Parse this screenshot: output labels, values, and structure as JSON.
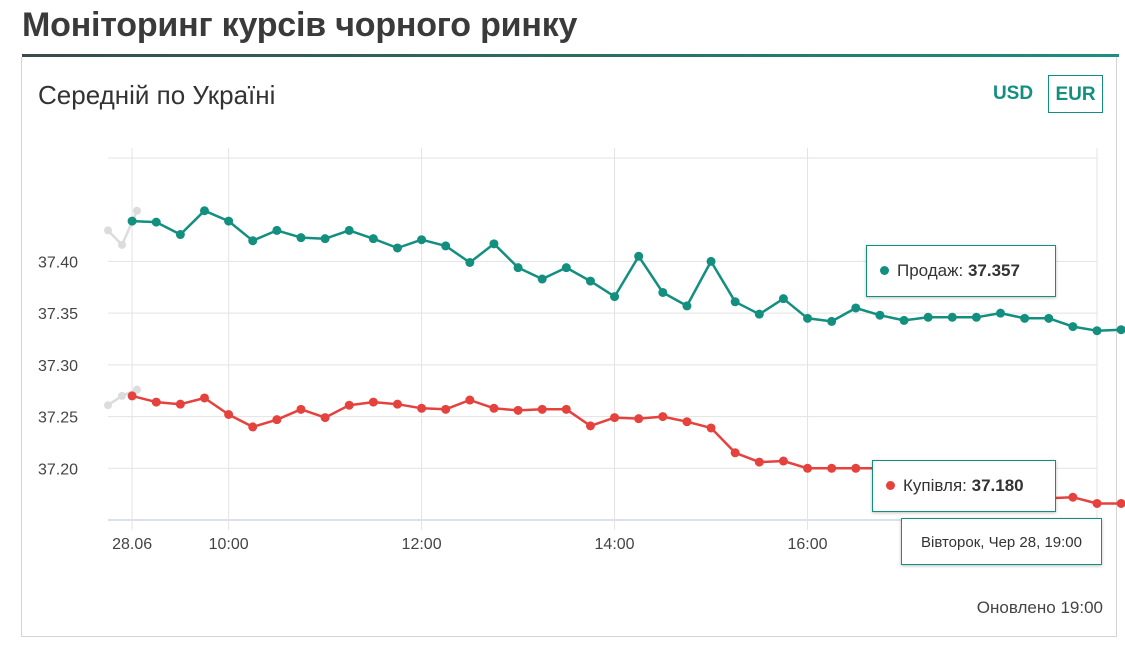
{
  "header": {
    "title": "Моніторинг курсів чорного ринку"
  },
  "card": {
    "title": "Середній по Україні",
    "updated": "Оновлено 19:00"
  },
  "currency": {
    "usd_label": "USD",
    "eur_label": "EUR",
    "active": "EUR"
  },
  "colors": {
    "sell": "#138f7f",
    "buy": "#e5423d",
    "grid": "#e3e3e3",
    "prev": "#dcdcdc"
  },
  "chart_data": {
    "type": "line",
    "title": "",
    "xlabel": "",
    "ylabel": "",
    "x_start": "09:00",
    "x_step_minutes": 15,
    "xlim": [
      "08:45",
      "19:00"
    ],
    "ylim": [
      37.15,
      37.5
    ],
    "y_ticks": [
      "37.40",
      "37.35",
      "37.30",
      "37.25",
      "37.20"
    ],
    "x_ticks": [
      {
        "time": "09:00",
        "label": "28.06"
      },
      {
        "time": "10:00",
        "label": "10:00"
      },
      {
        "time": "12:00",
        "label": "12:00"
      },
      {
        "time": "14:00",
        "label": "14:00"
      },
      {
        "time": "16:00",
        "label": "16:00"
      }
    ],
    "grid": true,
    "series": [
      {
        "name": "Продаж",
        "values": [
          37.439,
          37.438,
          37.426,
          37.449,
          37.439,
          37.42,
          37.43,
          37.423,
          37.422,
          37.43,
          37.422,
          37.413,
          37.421,
          37.415,
          37.399,
          37.417,
          37.394,
          37.383,
          37.394,
          37.381,
          37.366,
          37.405,
          37.37,
          37.357,
          37.4,
          37.361,
          37.349,
          37.364,
          37.345,
          37.342,
          37.355,
          37.348,
          37.343,
          37.346,
          37.346,
          37.346,
          37.35,
          37.345,
          37.345,
          37.337,
          37.333,
          37.334,
          37.342,
          37.334,
          37.335,
          37.345,
          37.347,
          37.345,
          37.35,
          37.347,
          37.345,
          37.343,
          37.34,
          37.338,
          37.338,
          37.339,
          37.34,
          37.344,
          37.35,
          37.357
        ]
      },
      {
        "name": "Купівля",
        "values": [
          37.27,
          37.264,
          37.262,
          37.268,
          37.252,
          37.24,
          37.247,
          37.257,
          37.249,
          37.261,
          37.264,
          37.262,
          37.258,
          37.257,
          37.266,
          37.258,
          37.256,
          37.257,
          37.257,
          37.241,
          37.249,
          37.248,
          37.25,
          37.245,
          37.239,
          37.215,
          37.206,
          37.207,
          37.2,
          37.2,
          37.2,
          37.2,
          37.2,
          37.2,
          37.189,
          37.176,
          37.181,
          37.175,
          37.171,
          37.172,
          37.166,
          37.166,
          37.167,
          37.167,
          37.176,
          37.177,
          37.181,
          37.175,
          37.182,
          37.175,
          37.178,
          37.18,
          37.178,
          37.176,
          37.177,
          37.178,
          37.179,
          37.18,
          37.175,
          37.18
        ]
      }
    ],
    "previous_day": {
      "sell": [
        37.43,
        37.416,
        37.449
      ],
      "buy": [
        37.261,
        37.27,
        37.276
      ]
    },
    "legend": "none"
  },
  "tooltip": {
    "sell_label": "Продаж:",
    "sell_value": "37.357",
    "buy_label": "Купівля:",
    "buy_value": "37.180",
    "date_label": "Вівторок, Чер 28, 19:00"
  }
}
